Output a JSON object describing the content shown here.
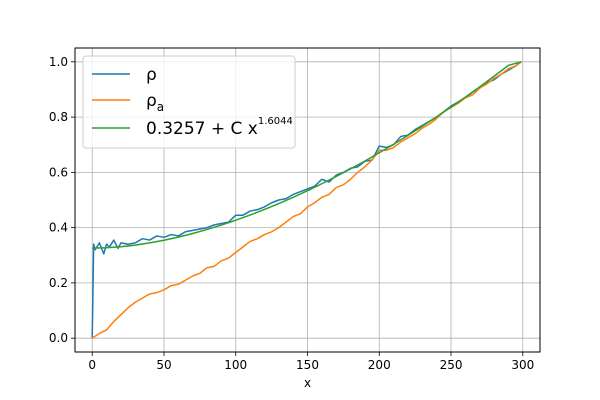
{
  "chart_data": {
    "type": "line",
    "title": "",
    "xlabel": "x",
    "ylabel": "",
    "xlim": [
      -12,
      312
    ],
    "ylim": [
      -0.05,
      1.05
    ],
    "xticks": [
      0,
      50,
      100,
      150,
      200,
      250,
      300
    ],
    "yticks": [
      0.0,
      0.2,
      0.4,
      0.6,
      0.8,
      1.0
    ],
    "xtick_labels": [
      "0",
      "50",
      "100",
      "150",
      "200",
      "250",
      "300"
    ],
    "ytick_labels": [
      "0.0",
      "0.2",
      "0.4",
      "0.6",
      "0.8",
      "1.0"
    ],
    "grid": true,
    "legend_position": "top-left",
    "legend": [
      {
        "main": "ρ",
        "sub": "",
        "sup": ""
      },
      {
        "main": "ρ",
        "sub": "a",
        "sup": ""
      },
      {
        "main": "0.3257 + C x",
        "sub": "",
        "sup": "1.6044"
      }
    ],
    "series": [
      {
        "color": "#1f77b4",
        "x": [
          0,
          1,
          2,
          5,
          8,
          10,
          12,
          15,
          18,
          20,
          25,
          30,
          35,
          40,
          45,
          50,
          55,
          60,
          65,
          70,
          75,
          80,
          85,
          90,
          95,
          100,
          105,
          110,
          115,
          120,
          125,
          130,
          135,
          140,
          145,
          150,
          155,
          160,
          165,
          170,
          175,
          180,
          185,
          190,
          195,
          200,
          205,
          210,
          215,
          220,
          225,
          230,
          235,
          240,
          245,
          250,
          255,
          260,
          265,
          270,
          275,
          280,
          285,
          290,
          295,
          299
        ],
        "y": [
          0.0,
          0.34,
          0.32,
          0.345,
          0.305,
          0.34,
          0.33,
          0.355,
          0.325,
          0.345,
          0.34,
          0.345,
          0.36,
          0.355,
          0.37,
          0.365,
          0.375,
          0.37,
          0.385,
          0.39,
          0.395,
          0.4,
          0.41,
          0.415,
          0.42,
          0.445,
          0.445,
          0.46,
          0.465,
          0.475,
          0.49,
          0.5,
          0.505,
          0.52,
          0.53,
          0.54,
          0.55,
          0.575,
          0.565,
          0.59,
          0.6,
          0.615,
          0.62,
          0.64,
          0.645,
          0.695,
          0.69,
          0.7,
          0.73,
          0.735,
          0.755,
          0.77,
          0.785,
          0.8,
          0.82,
          0.84,
          0.855,
          0.87,
          0.89,
          0.905,
          0.925,
          0.935,
          0.955,
          0.97,
          0.985,
          1.0
        ]
      },
      {
        "color": "#ff7f0e",
        "x": [
          0,
          3,
          6,
          10,
          15,
          20,
          25,
          30,
          35,
          40,
          45,
          50,
          55,
          60,
          65,
          70,
          75,
          80,
          85,
          90,
          95,
          100,
          105,
          110,
          115,
          120,
          125,
          130,
          135,
          140,
          145,
          150,
          155,
          160,
          165,
          170,
          175,
          180,
          185,
          190,
          195,
          200,
          205,
          210,
          215,
          220,
          225,
          230,
          235,
          240,
          245,
          250,
          255,
          260,
          265,
          270,
          275,
          280,
          285,
          290,
          295,
          299
        ],
        "y": [
          0.0,
          0.01,
          0.02,
          0.03,
          0.06,
          0.085,
          0.11,
          0.13,
          0.145,
          0.16,
          0.165,
          0.175,
          0.19,
          0.195,
          0.21,
          0.225,
          0.235,
          0.255,
          0.26,
          0.28,
          0.29,
          0.31,
          0.33,
          0.35,
          0.36,
          0.375,
          0.385,
          0.4,
          0.42,
          0.44,
          0.45,
          0.475,
          0.49,
          0.51,
          0.52,
          0.545,
          0.555,
          0.575,
          0.6,
          0.62,
          0.645,
          0.68,
          0.68,
          0.69,
          0.71,
          0.725,
          0.74,
          0.76,
          0.775,
          0.795,
          0.82,
          0.835,
          0.85,
          0.87,
          0.88,
          0.905,
          0.92,
          0.94,
          0.955,
          0.975,
          0.985,
          1.0
        ]
      },
      {
        "color": "#2ca02c",
        "x": [
          0,
          10,
          20,
          30,
          40,
          50,
          60,
          70,
          80,
          90,
          100,
          110,
          120,
          130,
          140,
          150,
          160,
          170,
          180,
          190,
          200,
          210,
          220,
          230,
          240,
          250,
          260,
          270,
          280,
          290,
          299
        ],
        "y": [
          0.3257,
          0.327,
          0.3308,
          0.3368,
          0.3447,
          0.3544,
          0.3658,
          0.3788,
          0.3934,
          0.4094,
          0.4268,
          0.4456,
          0.4657,
          0.4871,
          0.5098,
          0.5337,
          0.5588,
          0.5851,
          0.6126,
          0.6412,
          0.671,
          0.7018,
          0.7338,
          0.7668,
          0.801,
          0.8361,
          0.8723,
          0.9096,
          0.9478,
          0.9871,
          1.0
        ]
      }
    ]
  }
}
